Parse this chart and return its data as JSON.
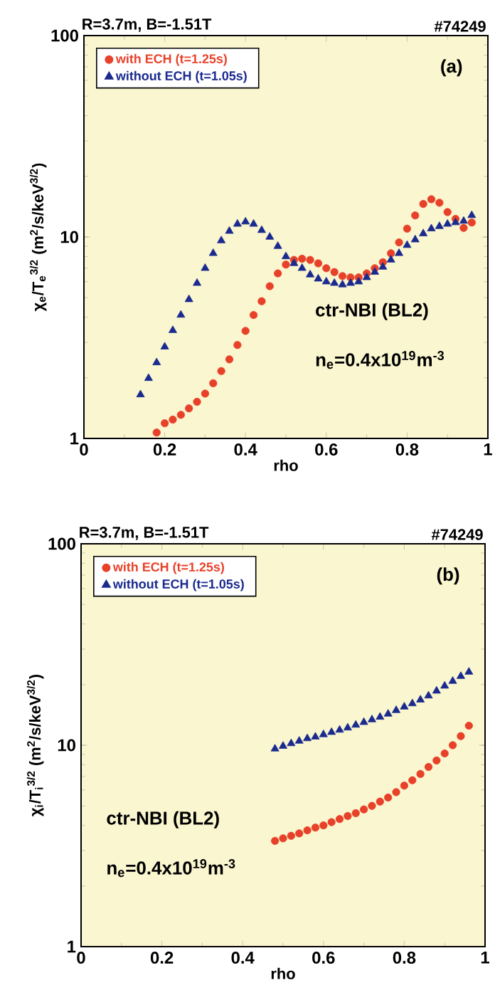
{
  "chart_data": [
    {
      "type": "scatter",
      "title": "R=3.7m, B=-1.51T",
      "subtitle": "#74249",
      "xlabel": "rho",
      "ylabel": "χ$_{e}$/T$_{e}$$^{3/2}$ (m$^{2}$/s/keV$^{3/2}$)",
      "log": "y",
      "legend": "top left",
      "xlim": [
        0,
        1
      ],
      "ylim": [
        1,
        100
      ],
      "xticks": [
        0,
        0.2,
        0.4,
        0.6,
        0.8,
        1
      ],
      "yticks": [
        1,
        10,
        100
      ],
      "annotations": [
        "(a)",
        "ctr-NBI (BL2)",
        "n$_{e}$=0.4x10$^{19}$m$^{-3}$"
      ],
      "series": [
        {
          "name": "with ECH (t=1.25s)",
          "color": "#e8412a",
          "marker": "circle",
          "x": [
            0.18,
            0.2,
            0.22,
            0.24,
            0.26,
            0.28,
            0.3,
            0.32,
            0.34,
            0.36,
            0.38,
            0.4,
            0.42,
            0.44,
            0.46,
            0.48,
            0.5,
            0.52,
            0.54,
            0.56,
            0.58,
            0.6,
            0.62,
            0.64,
            0.66,
            0.68,
            0.7,
            0.72,
            0.74,
            0.76,
            0.78,
            0.8,
            0.82,
            0.84,
            0.86,
            0.88,
            0.9,
            0.92,
            0.94,
            0.96
          ],
          "values": [
            1.07,
            1.19,
            1.24,
            1.31,
            1.41,
            1.52,
            1.67,
            1.88,
            2.16,
            2.47,
            2.91,
            3.42,
            4.1,
            4.8,
            5.7,
            6.6,
            7.3,
            7.7,
            7.8,
            7.7,
            7.4,
            7.0,
            6.7,
            6.4,
            6.3,
            6.3,
            6.6,
            7.0,
            7.5,
            8.3,
            9.4,
            11.0,
            12.8,
            14.6,
            15.4,
            14.8,
            13.3,
            12.3,
            11.1,
            11.8
          ]
        },
        {
          "name": "without ECH (t=1.05s)",
          "color": "#1a2a8e",
          "marker": "triangle",
          "x": [
            0.14,
            0.16,
            0.18,
            0.2,
            0.22,
            0.24,
            0.26,
            0.28,
            0.3,
            0.32,
            0.34,
            0.36,
            0.38,
            0.4,
            0.42,
            0.44,
            0.46,
            0.48,
            0.5,
            0.52,
            0.54,
            0.56,
            0.58,
            0.6,
            0.62,
            0.64,
            0.66,
            0.68,
            0.7,
            0.72,
            0.74,
            0.76,
            0.78,
            0.8,
            0.82,
            0.84,
            0.86,
            0.88,
            0.9,
            0.92,
            0.94,
            0.96
          ],
          "values": [
            1.65,
            1.99,
            2.38,
            2.85,
            3.44,
            4.1,
            4.9,
            5.9,
            7.0,
            8.3,
            9.6,
            10.7,
            11.6,
            11.9,
            11.6,
            10.8,
            10.0,
            9.0,
            8.0,
            7.4,
            7.0,
            6.5,
            6.2,
            6.0,
            5.9,
            5.8,
            5.9,
            6.0,
            6.3,
            6.7,
            7.1,
            7.7,
            8.3,
            9.1,
            9.7,
            10.4,
            11.0,
            11.3,
            11.6,
            11.8,
            12.0,
            12.8
          ]
        }
      ]
    },
    {
      "type": "scatter",
      "title": "R=3.7m, B=-1.51T",
      "subtitle": "#74249",
      "xlabel": "rho",
      "ylabel": "χ$_{i}$/T$_{i}$$^{3/2}$ (m$^{2}$/s/keV$^{3/2}$)",
      "log": "y",
      "legend": "top left",
      "xlim": [
        0,
        1
      ],
      "ylim": [
        1,
        100
      ],
      "xticks": [
        0,
        0.2,
        0.4,
        0.6,
        0.8,
        1
      ],
      "yticks": [
        1,
        10,
        100
      ],
      "annotations": [
        "(b)",
        "ctr-NBI (BL2)",
        "n$_{e}$=0.4x10$^{19}$m$^{-3}$"
      ],
      "series": [
        {
          "name": "with ECH (t=1.25s)",
          "color": "#e8412a",
          "marker": "circle",
          "x": [
            0.48,
            0.5,
            0.52,
            0.54,
            0.56,
            0.58,
            0.6,
            0.62,
            0.64,
            0.66,
            0.68,
            0.7,
            0.72,
            0.74,
            0.76,
            0.78,
            0.8,
            0.82,
            0.84,
            0.86,
            0.88,
            0.9,
            0.92,
            0.94,
            0.96
          ],
          "values": [
            3.35,
            3.45,
            3.55,
            3.65,
            3.78,
            3.9,
            4.0,
            4.15,
            4.3,
            4.45,
            4.6,
            4.8,
            5.0,
            5.25,
            5.5,
            5.85,
            6.3,
            6.7,
            7.2,
            7.8,
            8.4,
            9.1,
            10.0,
            11.1,
            12.5
          ]
        },
        {
          "name": "without ECH (t=1.05s)",
          "color": "#1a2a8e",
          "marker": "triangle",
          "x": [
            0.48,
            0.5,
            0.52,
            0.54,
            0.56,
            0.58,
            0.6,
            0.62,
            0.64,
            0.66,
            0.68,
            0.7,
            0.72,
            0.74,
            0.76,
            0.78,
            0.8,
            0.82,
            0.84,
            0.86,
            0.88,
            0.9,
            0.92,
            0.94,
            0.96
          ],
          "values": [
            9.6,
            9.9,
            10.2,
            10.5,
            10.8,
            11.0,
            11.3,
            11.6,
            11.9,
            12.2,
            12.6,
            13.0,
            13.4,
            13.8,
            14.3,
            14.9,
            15.5,
            16.1,
            16.8,
            17.6,
            18.6,
            19.7,
            20.8,
            22.0,
            23.1
          ]
        }
      ]
    }
  ]
}
